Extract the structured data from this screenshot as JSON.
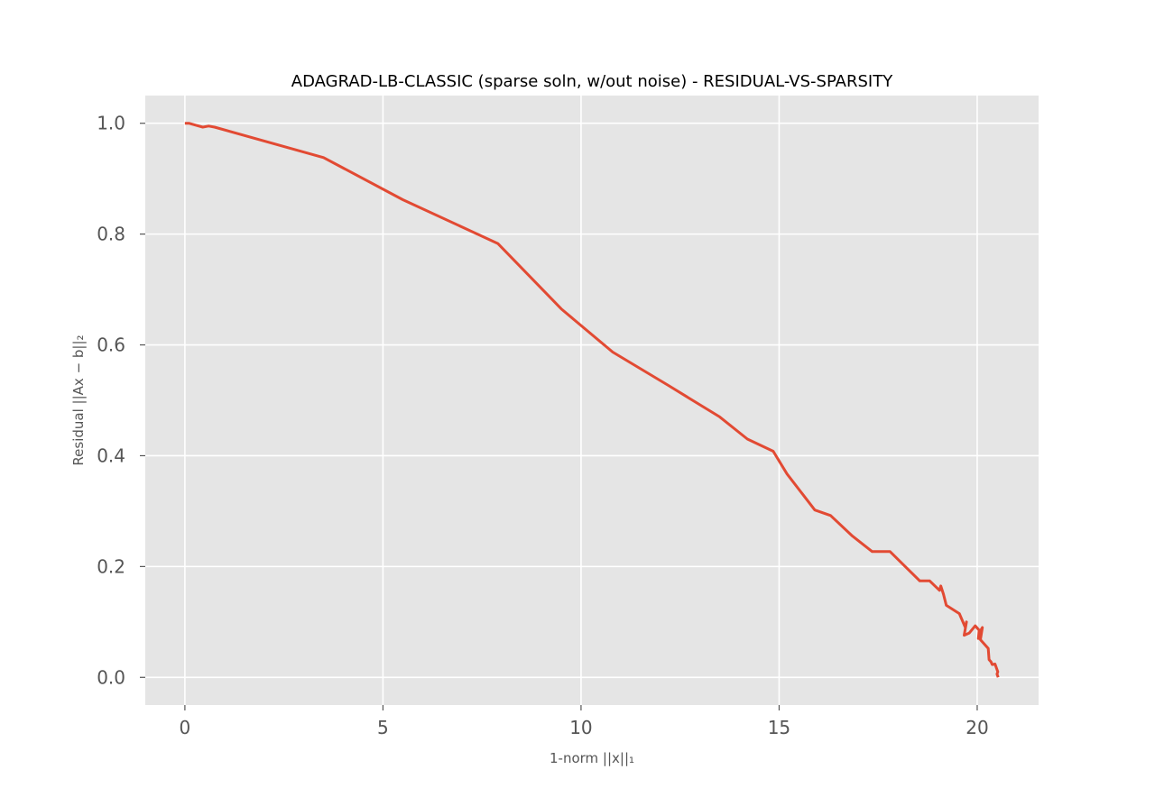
{
  "chart_data": {
    "type": "line",
    "title": "ADAGRAD-LB-CLASSIC (sparse soln, w/out noise) - RESIDUAL-VS-SPARSITY",
    "xlabel": "1-norm ||x||₁",
    "ylabel": "Residual ||Ax − b||₂",
    "xlim": [
      -1.0,
      21.55
    ],
    "ylim": [
      -0.05,
      1.05
    ],
    "xticks": [
      0,
      5,
      10,
      15,
      20
    ],
    "xtick_labels": [
      "0",
      "5",
      "10",
      "15",
      "20"
    ],
    "yticks": [
      0.0,
      0.2,
      0.4,
      0.6,
      0.8,
      1.0
    ],
    "ytick_labels": [
      "0.0",
      "0.2",
      "0.4",
      "0.6",
      "0.8",
      "1.0"
    ],
    "grid": true,
    "series": [
      {
        "color": "#e24a33",
        "x": [
          0.0,
          0.1,
          0.25,
          0.45,
          0.6,
          0.75,
          3.5,
          5.5,
          7.9,
          9.5,
          10.8,
          12.2,
          13.5,
          14.2,
          14.85,
          15.2,
          15.9,
          16.3,
          16.85,
          17.35,
          17.8,
          18.55,
          18.8,
          19.05,
          19.08,
          19.15,
          19.22,
          19.55,
          19.7,
          19.73,
          19.67,
          19.8,
          19.95,
          20.05,
          20.03,
          20.1,
          20.13,
          20.08,
          20.28,
          20.3,
          20.35,
          20.38,
          20.45,
          20.52,
          20.5,
          20.53
        ],
        "y": [
          1.0,
          1.0,
          0.997,
          0.993,
          0.995,
          0.993,
          0.938,
          0.862,
          0.783,
          0.665,
          0.587,
          0.527,
          0.47,
          0.43,
          0.408,
          0.367,
          0.302,
          0.292,
          0.255,
          0.227,
          0.227,
          0.174,
          0.174,
          0.157,
          0.165,
          0.15,
          0.13,
          0.115,
          0.09,
          0.1,
          0.076,
          0.08,
          0.093,
          0.085,
          0.07,
          0.086,
          0.09,
          0.068,
          0.052,
          0.032,
          0.028,
          0.023,
          0.024,
          0.01,
          0.006,
          0.0
        ]
      }
    ]
  }
}
